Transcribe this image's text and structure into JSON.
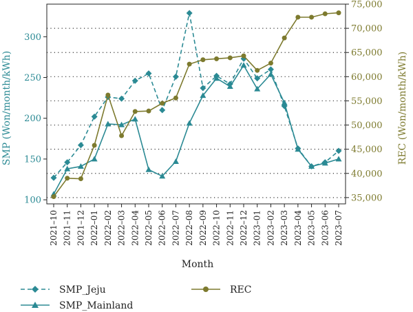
{
  "chart_data": {
    "type": "line",
    "xlabel": "Month",
    "ylabel_left": "SMP (Won/month/kWh)",
    "ylabel_right": "REC (Won/month/kWh)",
    "categories": [
      "2021–10",
      "2021–11",
      "2021–12",
      "2022–01",
      "2022–02",
      "2022–03",
      "2022–04",
      "2022–05",
      "2022–06",
      "2022–07",
      "2022–08",
      "2022–09",
      "2022–10",
      "2022–11",
      "2022–12",
      "2023–01",
      "2023–02",
      "2023–03",
      "2023–04",
      "2023–05",
      "2023–06",
      "2023–07"
    ],
    "ylim_left": [
      95,
      340
    ],
    "yticks_left": [
      100,
      150,
      200,
      250,
      300
    ],
    "ylim_right": [
      33700,
      75000
    ],
    "yticks_right": [
      35000,
      40000,
      45000,
      50000,
      55000,
      60000,
      65000,
      70000,
      75000
    ],
    "yticks_right_labels": [
      "35,000",
      "40,000",
      "45,000",
      "50,000",
      "55,000",
      "60,000",
      "65,000",
      "70,000",
      "75,000"
    ],
    "grid": "horizontal dotted",
    "legend_position": "bottom",
    "series": [
      {
        "name": "SMP_Jeju",
        "axis": "left",
        "style": "dashed",
        "marker": "diamond",
        "color": "#2b8a94",
        "values": [
          127,
          146,
          167,
          202,
          226,
          224,
          246,
          255,
          210,
          251,
          329,
          237,
          252,
          242,
          273,
          249,
          260,
          215,
          163,
          141,
          146,
          160
        ]
      },
      {
        "name": "SMP_Mainland",
        "axis": "left",
        "style": "solid",
        "marker": "triangle",
        "color": "#2b8a94",
        "values": [
          107,
          138,
          141,
          150,
          193,
          192,
          199,
          137,
          129,
          147,
          194,
          228,
          249,
          239,
          265,
          236,
          254,
          219,
          162,
          141,
          145,
          150
        ]
      },
      {
        "name": "REC",
        "axis": "right",
        "style": "solid",
        "marker": "circle",
        "color": "#7d7a2e",
        "values": [
          35200,
          39000,
          38900,
          45800,
          56200,
          47800,
          52800,
          52900,
          54500,
          55600,
          62600,
          63500,
          63700,
          63900,
          64300,
          61300,
          62800,
          68000,
          72300,
          72300,
          73000,
          73200
        ]
      }
    ]
  }
}
